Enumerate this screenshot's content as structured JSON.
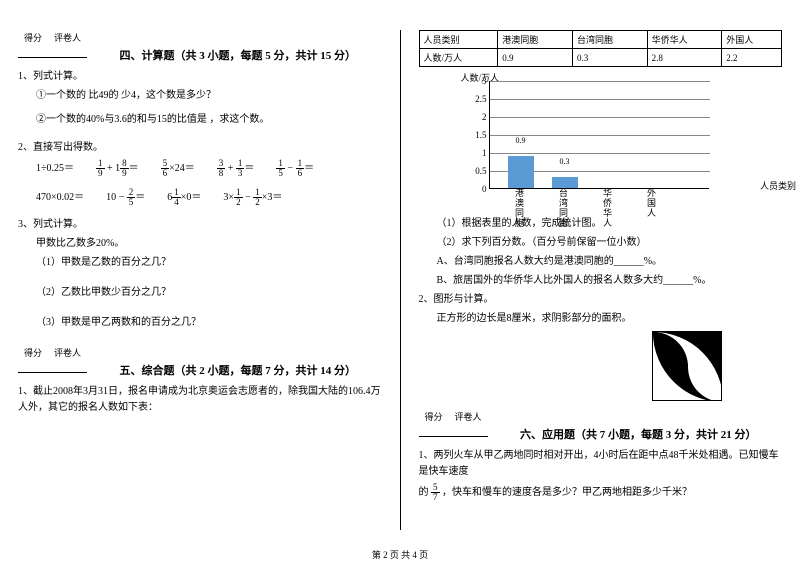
{
  "scoreBox": {
    "col1": "得分",
    "col2": "评卷人"
  },
  "section4": {
    "title": "四、计算题（共 3 小题，每题 5 分，共计 15 分）",
    "q1": {
      "stem": "1、列式计算。",
      "a": "①一个数的 比49的 少4，这个数是多少？",
      "b": "②一个数的40%与3.6的和与15的比值是 ，求这个数。"
    },
    "q2": {
      "stem": "2、直接写出得数。",
      "row1": [
        {
          "pre": "1÷0.25＝"
        },
        {
          "pre": "",
          "frac1": [
            "1",
            "9"
          ],
          "mid": " + 1",
          "frac2": [
            "8",
            "9"
          ],
          "post": "＝"
        },
        {
          "frac1": [
            "5",
            "6"
          ],
          "post": "×24＝"
        },
        {
          "frac1": [
            "3",
            "8"
          ],
          "mid": " + ",
          "frac2": [
            "1",
            "3"
          ],
          "post": "＝"
        },
        {
          "frac1": [
            "1",
            "5"
          ],
          "mid": " − ",
          "frac2": [
            "1",
            "6"
          ],
          "post": "＝"
        }
      ],
      "row2": [
        {
          "pre": "470×0.02＝"
        },
        {
          "pre": "10 − ",
          "frac1": [
            "2",
            "5"
          ],
          "post": "＝"
        },
        {
          "pre": "6",
          "frac1": [
            "1",
            "4"
          ],
          "post": "×0＝"
        },
        {
          "pre": "3×",
          "frac1": [
            "1",
            "2"
          ],
          "mid": " − ",
          "frac2": [
            "1",
            "2"
          ],
          "post": "×3＝"
        }
      ]
    },
    "q3": {
      "stem": "3、列式计算。",
      "intro": "甲数比乙数多20%。",
      "a": "（1）甲数是乙数的百分之几？",
      "b": "（2）乙数比甲数少百分之几？",
      "c": "（3）甲数是甲乙两数和的百分之几？"
    }
  },
  "section5": {
    "title": "五、综合题（共 2 小题，每题 7 分，共计 14 分）",
    "q1": "1、截止2008年3月31日，报名申请成为北京奥运会志愿者的，除我国大陆的106.4万人外，其它的报名人数如下表："
  },
  "table": {
    "headers": [
      "人员类别",
      "港澳同胞",
      "台湾同胞",
      "华侨华人",
      "外国人"
    ],
    "row": [
      "人数/万人",
      "0.9",
      "0.3",
      "2.8",
      "2.2"
    ]
  },
  "chart": {
    "type": "bar",
    "y_title": "人数/万人",
    "x_title": "人员类别",
    "y_max": 3,
    "y_step": 0.5,
    "y_ticks": [
      "3",
      "2.5",
      "2",
      "1.5",
      "1",
      "0.5",
      "0"
    ],
    "categories": [
      "港澳同胞",
      "台湾同胞",
      "华侨华人",
      "外国人"
    ],
    "values": [
      0.9,
      0.3,
      null,
      null
    ],
    "bar_color": "#5b9bd5",
    "grid_color": "#888888"
  },
  "right_q1": {
    "a": "（1）根据表里的人数，完成统计图。",
    "b": "（2）求下列百分数。（百分号前保留一位小数）",
    "ba": "A、台湾同胞报名人数大约是港澳同胞的______%。",
    "bb": "B、旅居国外的华侨华人比外国人的报名人数多大约______%。"
  },
  "right_q2": {
    "stem": "2、图形与计算。",
    "body": "正方形的边长是8厘米，求阴影部分的面积。"
  },
  "section6": {
    "title": "六、应用题（共 7 小题，每题 3 分，共计 21 分）",
    "q1a": "1、两列火车从甲乙两地同时相对开出，4小时后在距中点48千米处相遇。已知慢车是快车速度",
    "q1b_pre": "的",
    "q1b_post": "，快车和慢车的速度各是多少？甲乙两地相距多少千米？",
    "frac": [
      "5",
      "7"
    ]
  },
  "footer": "第 2 页 共 4 页"
}
